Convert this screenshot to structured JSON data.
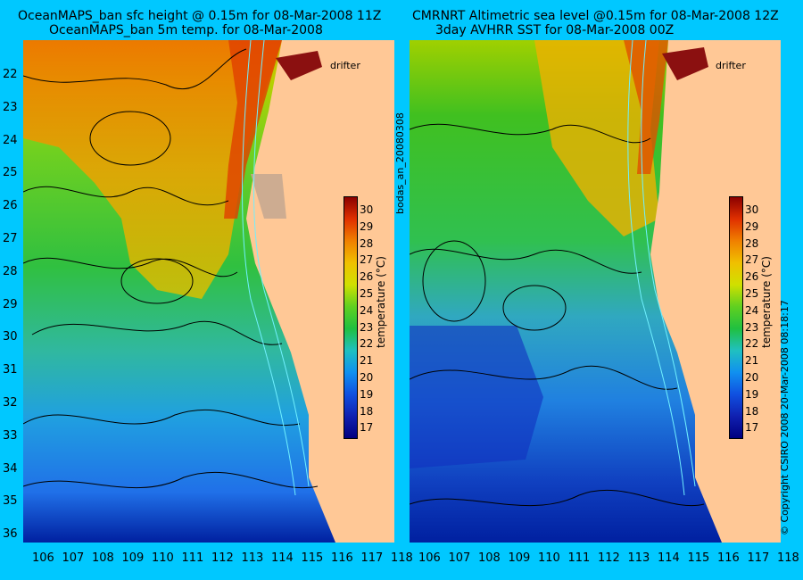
{
  "left_panel": {
    "title_line1": "OceanMAPS_ban sfc height @ 0.15m for 08-Mar-2008 11Z",
    "title_line2": "OceanMAPS_ban 5m temp. for 08-Mar-2008",
    "drifter_label": "drifter"
  },
  "right_panel": {
    "title_line1": "CMRNRT Altimetric sea level  @0.15m  for 08-Mar-2008 12Z",
    "title_line2": "3day AVHRR SST for 08-Mar-2008 00Z",
    "drifter_label": "drifter"
  },
  "middle_label": "bodas_an_20080308",
  "copyright": "© Copyright CSIRO 2008     20-Mar-2008 08:18:17",
  "colorbar": {
    "title": "temperature (°C)",
    "ticks": [
      "30",
      "29",
      "28",
      "27",
      "26",
      "25",
      "24",
      "23",
      "22",
      "21",
      "20",
      "19",
      "18",
      "17"
    ]
  },
  "lat_ticks": [
    "22",
    "23",
    "24",
    "25",
    "26",
    "27",
    "28",
    "29",
    "30",
    "31",
    "32",
    "33",
    "34",
    "35",
    "36"
  ],
  "lon_ticks": [
    "106",
    "107",
    "108",
    "109",
    "110",
    "111",
    "112",
    "113",
    "114",
    "115",
    "116",
    "117",
    "118"
  ],
  "colors": {
    "background": "#00c8ff",
    "land": "#ffc896",
    "warm": "#8b0000",
    "cool": "#0000a0"
  }
}
